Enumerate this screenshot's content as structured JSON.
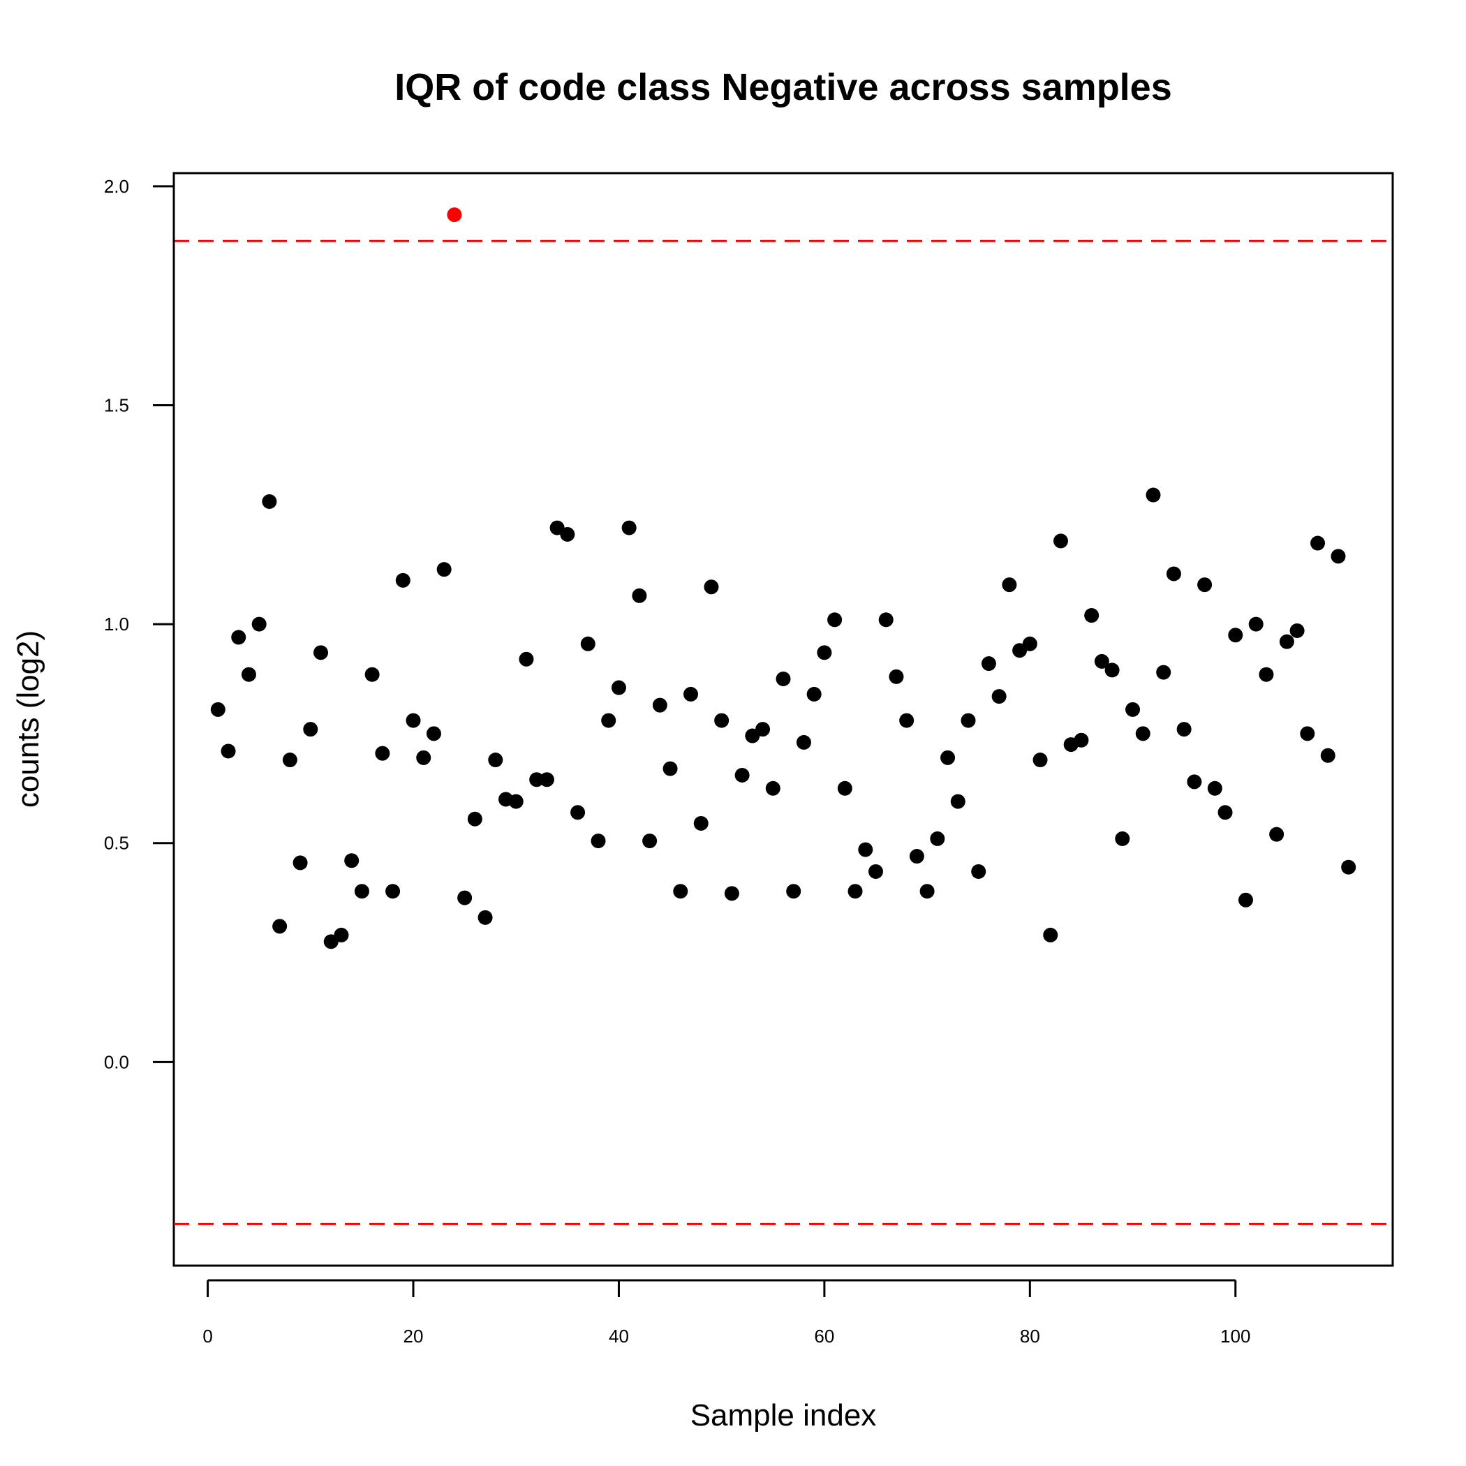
{
  "chart_data": {
    "type": "scatter",
    "title": "IQR of code class Negative across samples",
    "xlabel": "Sample index",
    "ylabel": "counts (log2)",
    "xlim": [
      -3.3,
      115.3
    ],
    "ylim": [
      -0.465,
      2.03
    ],
    "x_ticks": [
      0,
      20,
      40,
      60,
      80,
      100
    ],
    "x_tick_labels": [
      "0",
      "20",
      "40",
      "60",
      "80",
      "100"
    ],
    "y_ticks": [
      0.0,
      0.5,
      1.0,
      1.5,
      2.0
    ],
    "y_tick_labels": [
      "0.0",
      "0.5",
      "1.0",
      "1.5",
      "2.0"
    ],
    "threshold_lines": [
      1.875,
      -0.37
    ],
    "threshold_color": "#ff0000",
    "point_color": "#000000",
    "outlier_color": "#ff0000",
    "outliers": [
      24
    ],
    "grid": false,
    "x": [
      1,
      2,
      3,
      4,
      5,
      6,
      7,
      8,
      9,
      10,
      11,
      12,
      13,
      14,
      15,
      16,
      17,
      18,
      19,
      20,
      21,
      22,
      23,
      24,
      25,
      26,
      27,
      28,
      29,
      30,
      31,
      32,
      33,
      34,
      35,
      36,
      37,
      38,
      39,
      40,
      41,
      42,
      43,
      44,
      45,
      46,
      47,
      48,
      49,
      50,
      51,
      52,
      53,
      54,
      55,
      56,
      57,
      58,
      59,
      60,
      61,
      62,
      63,
      64,
      65,
      66,
      67,
      68,
      69,
      70,
      71,
      72,
      73,
      74,
      75,
      76,
      77,
      78,
      79,
      80,
      81,
      82,
      83,
      84,
      85,
      86,
      87,
      88,
      89,
      90,
      91,
      92,
      93,
      94,
      95,
      96,
      97,
      98,
      99,
      100,
      101,
      102,
      103,
      104,
      105,
      106,
      107,
      108,
      109,
      110,
      111
    ],
    "y": [
      0.805,
      0.71,
      0.97,
      0.885,
      1.0,
      1.28,
      0.31,
      0.69,
      0.455,
      0.76,
      0.935,
      0.275,
      0.29,
      0.46,
      0.39,
      0.885,
      0.705,
      0.39,
      1.1,
      0.78,
      0.695,
      0.75,
      1.125,
      1.935,
      0.375,
      0.555,
      0.33,
      0.69,
      0.6,
      0.595,
      0.92,
      0.645,
      0.645,
      1.22,
      1.205,
      0.57,
      0.955,
      0.505,
      0.78,
      0.855,
      1.22,
      1.065,
      0.505,
      0.815,
      0.67,
      0.39,
      0.84,
      0.545,
      1.085,
      0.78,
      0.385,
      0.655,
      0.745,
      0.76,
      0.625,
      0.875,
      0.39,
      0.73,
      0.84,
      0.935,
      1.01,
      0.625,
      0.39,
      0.485,
      0.435,
      1.01,
      0.88,
      0.78,
      0.47,
      0.39,
      0.51,
      0.695,
      0.595,
      0.78,
      0.435,
      0.91,
      0.835,
      1.09,
      0.94,
      0.955,
      0.69,
      0.29,
      1.19,
      0.725,
      0.735,
      1.02,
      0.915,
      0.895,
      0.51,
      0.805,
      0.75,
      1.295,
      0.89,
      1.115,
      0.76,
      0.64,
      1.09,
      0.625,
      0.57,
      0.975,
      0.37,
      1.0,
      0.885,
      0.52,
      0.96,
      0.985,
      0.75,
      1.185,
      0.7,
      1.155,
      0.445
    ]
  }
}
